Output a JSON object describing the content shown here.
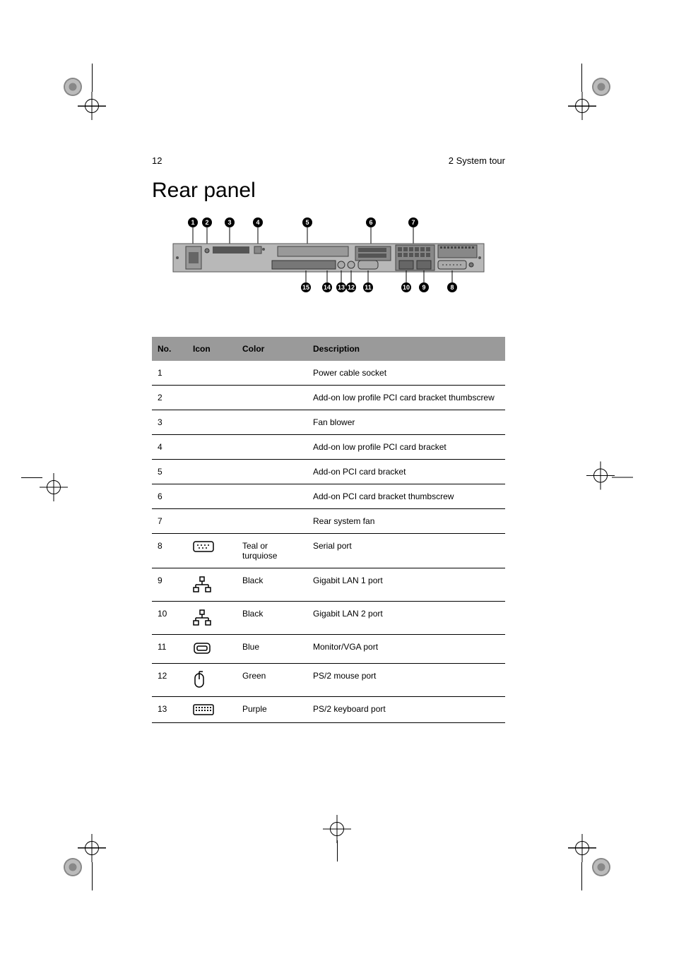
{
  "page": {
    "number": "12",
    "section": "2 System tour",
    "heading": "Rear panel"
  },
  "diagram": {
    "top_callouts": [
      "1",
      "2",
      "3",
      "4",
      "5",
      "6",
      "7"
    ],
    "bottom_callouts_left": [
      "15",
      "14",
      "13",
      "12",
      "11"
    ],
    "bottom_callouts_right": [
      "10",
      "9",
      "8"
    ],
    "body_color": "#b8b8b8",
    "callout_bg": "#000000",
    "callout_fg": "#ffffff"
  },
  "table": {
    "headers": {
      "no": "No.",
      "icon": "Icon",
      "color": "Color",
      "desc": "Description"
    },
    "header_bg": "#9a9a9a",
    "rows": [
      {
        "no": "1",
        "icon": null,
        "color": "",
        "desc": "Power cable socket"
      },
      {
        "no": "2",
        "icon": null,
        "color": "",
        "desc": "Add-on low profile PCI card bracket thumbscrew"
      },
      {
        "no": "3",
        "icon": null,
        "color": "",
        "desc": "Fan blower"
      },
      {
        "no": "4",
        "icon": null,
        "color": "",
        "desc": "Add-on low profile PCI card bracket"
      },
      {
        "no": "5",
        "icon": null,
        "color": "",
        "desc": "Add-on PCI card bracket"
      },
      {
        "no": "6",
        "icon": null,
        "color": "",
        "desc": "Add-on PCI card bracket thumbscrew"
      },
      {
        "no": "7",
        "icon": null,
        "color": "",
        "desc": "Rear system fan"
      },
      {
        "no": "8",
        "icon": "serial",
        "color": "Teal or turquiose",
        "desc": "Serial port"
      },
      {
        "no": "9",
        "icon": "lan",
        "color": "Black",
        "desc": "Gigabit LAN 1 port"
      },
      {
        "no": "10",
        "icon": "lan",
        "color": "Black",
        "desc": "Gigabit LAN 2 port"
      },
      {
        "no": "11",
        "icon": "monitor",
        "color": "Blue",
        "desc": "Monitor/VGA port"
      },
      {
        "no": "12",
        "icon": "mouse",
        "color": "Green",
        "desc": "PS/2 mouse port"
      },
      {
        "no": "13",
        "icon": "keyboard",
        "color": "Purple",
        "desc": "PS/2 keyboard port"
      }
    ]
  }
}
